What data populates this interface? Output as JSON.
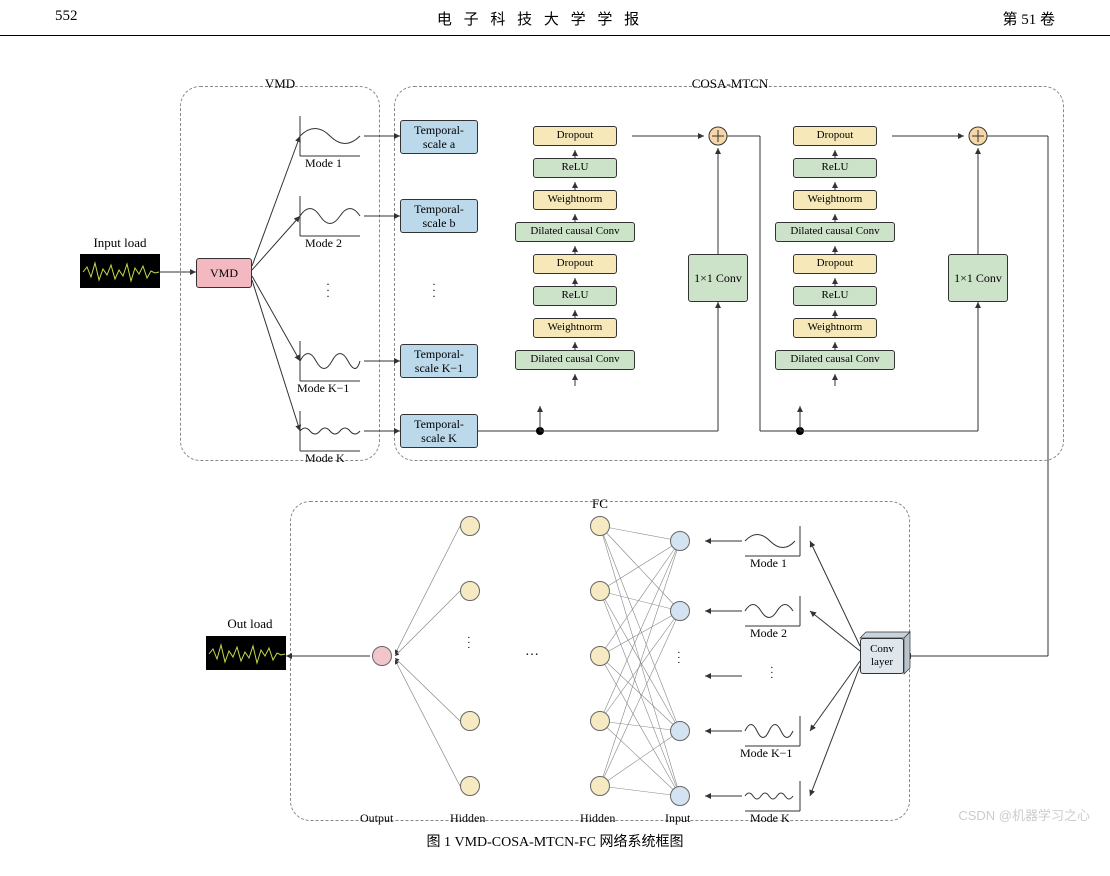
{
  "header": {
    "page_num": "552",
    "journal": "电 子 科 技 大 学 学 报",
    "volume": "第 51 卷"
  },
  "colors": {
    "vmd_box": "#f3b8c0",
    "temporal_box": "#bcd9ec",
    "tcn_yellow": "#f7e8b9",
    "tcn_green": "#cde3c9",
    "conv_box": "#dfe7ed",
    "nn_yellow": "#f5eac1",
    "nn_blue": "#d4e3f2",
    "nn_pink": "#f2c5cd",
    "plus_fill": "#f7d6a8",
    "border": "#4a4a4a",
    "dash": "#888888"
  },
  "labels": {
    "input_load": "Input load",
    "vmd_group": "VMD",
    "vmd_box": "VMD",
    "cosa_group": "COSA-MTCN",
    "fc_group": "FC",
    "out_load": "Out load",
    "conv_layer": "Conv\nlayer",
    "caption": "图 1   VMD-COSA-MTCN-FC 网络系统框图",
    "watermark": "CSDN @机器学习之心"
  },
  "modes": [
    "Mode 1",
    "Mode 2",
    "Mode K−1",
    "Mode K"
  ],
  "temporal": [
    "Temporal-\nscale a",
    "Temporal-\nscale b",
    "Temporal-\nscale K−1",
    "Temporal-\nscale K"
  ],
  "tcn_stack": [
    "Dropout",
    "ReLU",
    "Weightnorm",
    "Dilated causal Conv",
    "Dropout",
    "ReLU",
    "Weightnorm",
    "Dilated causal Conv"
  ],
  "conv1x1": "1×1 Conv",
  "fc_modes": [
    "Mode 1",
    "Mode 2",
    "Mode K−1",
    "Mode K"
  ],
  "fc_layers": [
    "Output",
    "Hidden",
    "Hidden",
    "Input"
  ]
}
